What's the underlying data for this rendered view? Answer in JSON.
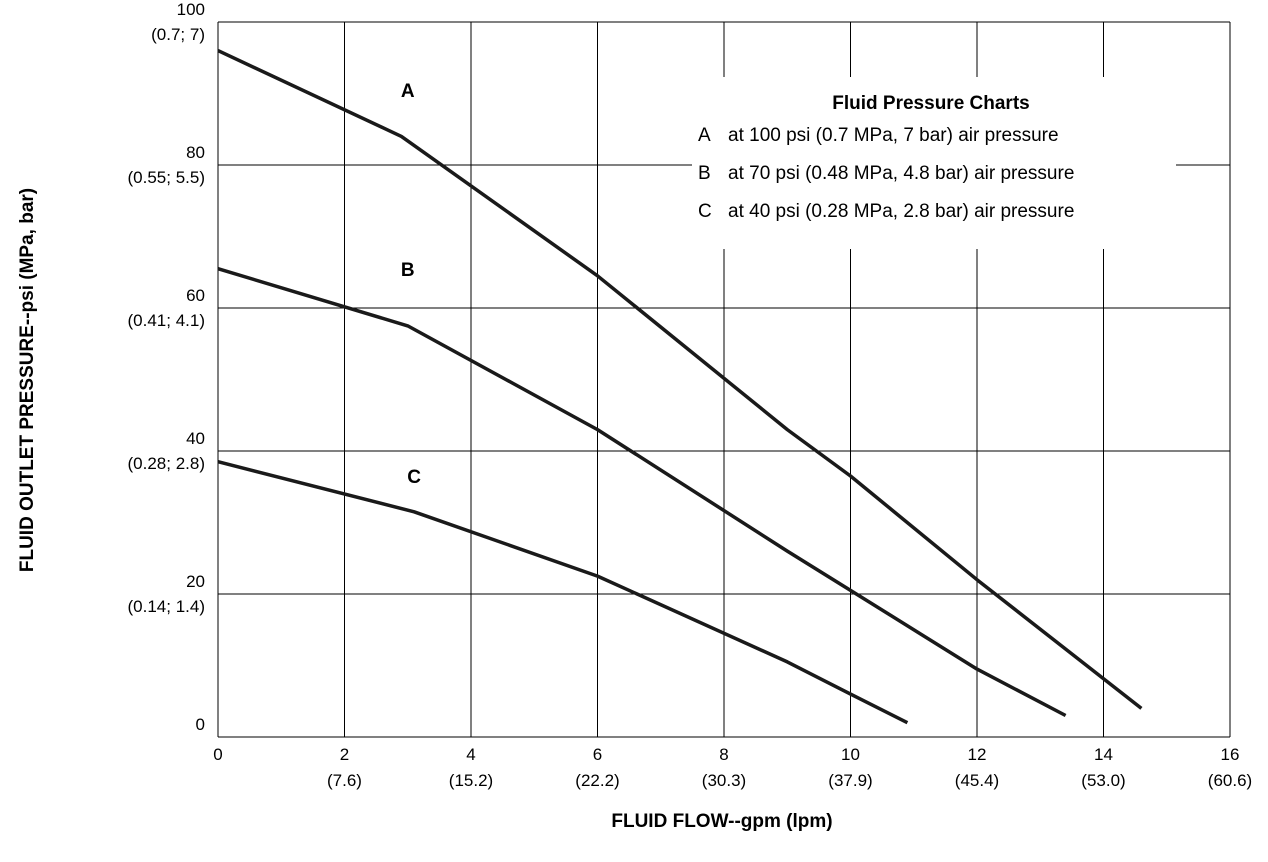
{
  "chart_data": {
    "type": "line",
    "xlabel": "FLUID FLOW--gpm (lpm)",
    "ylabel": "FLUID OUTLET PRESSURE--psi (MPa, bar)",
    "xlim": [
      0,
      16
    ],
    "ylim": [
      0,
      100
    ],
    "x_ticks": [
      {
        "value": 0,
        "label": "0",
        "sub": ""
      },
      {
        "value": 2,
        "label": "2",
        "sub": "(7.6)"
      },
      {
        "value": 4,
        "label": "4",
        "sub": "(15.2)"
      },
      {
        "value": 6,
        "label": "6",
        "sub": "(22.2)"
      },
      {
        "value": 8,
        "label": "8",
        "sub": "(30.3)"
      },
      {
        "value": 10,
        "label": "10",
        "sub": "(37.9)"
      },
      {
        "value": 12,
        "label": "12",
        "sub": "(45.4)"
      },
      {
        "value": 14,
        "label": "14",
        "sub": "(53.0)"
      },
      {
        "value": 16,
        "label": "16",
        "sub": "(60.6)"
      }
    ],
    "y_ticks": [
      {
        "value": 0,
        "label": "0",
        "sub": ""
      },
      {
        "value": 20,
        "label": "20",
        "sub": "(0.14; 1.4)"
      },
      {
        "value": 40,
        "label": "40",
        "sub": "(0.28; 2.8)"
      },
      {
        "value": 60,
        "label": "60",
        "sub": "(0.41; 4.1)"
      },
      {
        "value": 80,
        "label": "80",
        "sub": "(0.55; 5.5)"
      },
      {
        "value": 100,
        "label": "100",
        "sub": "(0.7; 7)"
      }
    ],
    "grid": true,
    "series": [
      {
        "name": "A",
        "x": [
          0,
          2.9,
          6,
          9,
          10,
          12,
          14.6
        ],
        "y": [
          96,
          84,
          64.5,
          43,
          36.5,
          22,
          4
        ]
      },
      {
        "name": "B",
        "x": [
          0,
          3,
          6,
          9,
          10,
          12,
          13.4
        ],
        "y": [
          65.5,
          57.5,
          43,
          26,
          20.5,
          9.5,
          3
        ]
      },
      {
        "name": "C",
        "x": [
          0,
          3.1,
          6,
          9,
          10,
          10.9
        ],
        "y": [
          38.5,
          31.5,
          22.5,
          10.5,
          6,
          2
        ]
      }
    ],
    "curve_labels": [
      {
        "text": "A",
        "x": 3,
        "y": 89.5
      },
      {
        "text": "B",
        "x": 3,
        "y": 64.5
      },
      {
        "text": "C",
        "x": 3.1,
        "y": 35.5
      }
    ],
    "legend": {
      "title": "Fluid Pressure Charts",
      "placement": "top-right",
      "items": [
        {
          "key": "A",
          "text": "at 100 psi (0.7 MPa, 7 bar) air pressure"
        },
        {
          "key": "B",
          "text": "at 70 psi (0.48 MPa, 4.8 bar) air pressure"
        },
        {
          "key": "C",
          "text": "at 40 psi (0.28 MPa, 2.8 bar) air pressure"
        }
      ]
    }
  }
}
